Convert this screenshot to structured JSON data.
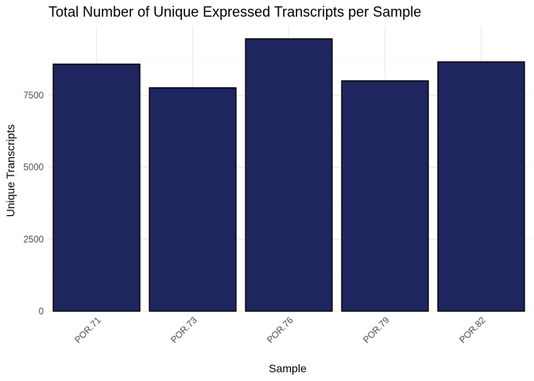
{
  "chart_data": {
    "type": "bar",
    "title": "Total Number of Unique Expressed Transcripts per Sample",
    "xlabel": "Sample",
    "ylabel": "Unique Transcripts",
    "categories": [
      "POR.71",
      "POR.73",
      "POR.76",
      "POR.79",
      "POR.82"
    ],
    "values": [
      8580,
      7760,
      9460,
      8000,
      8660
    ],
    "ylim": [
      0,
      9900
    ],
    "yticks": [
      0,
      2500,
      5000,
      7500
    ],
    "ytick_labels": [
      "0",
      "2500",
      "5000",
      "7500"
    ],
    "bar_fill": "#1f255f",
    "bar_outline": "#000000",
    "grid": true,
    "theme": "minimal",
    "x_tick_rotation_deg": 45
  }
}
